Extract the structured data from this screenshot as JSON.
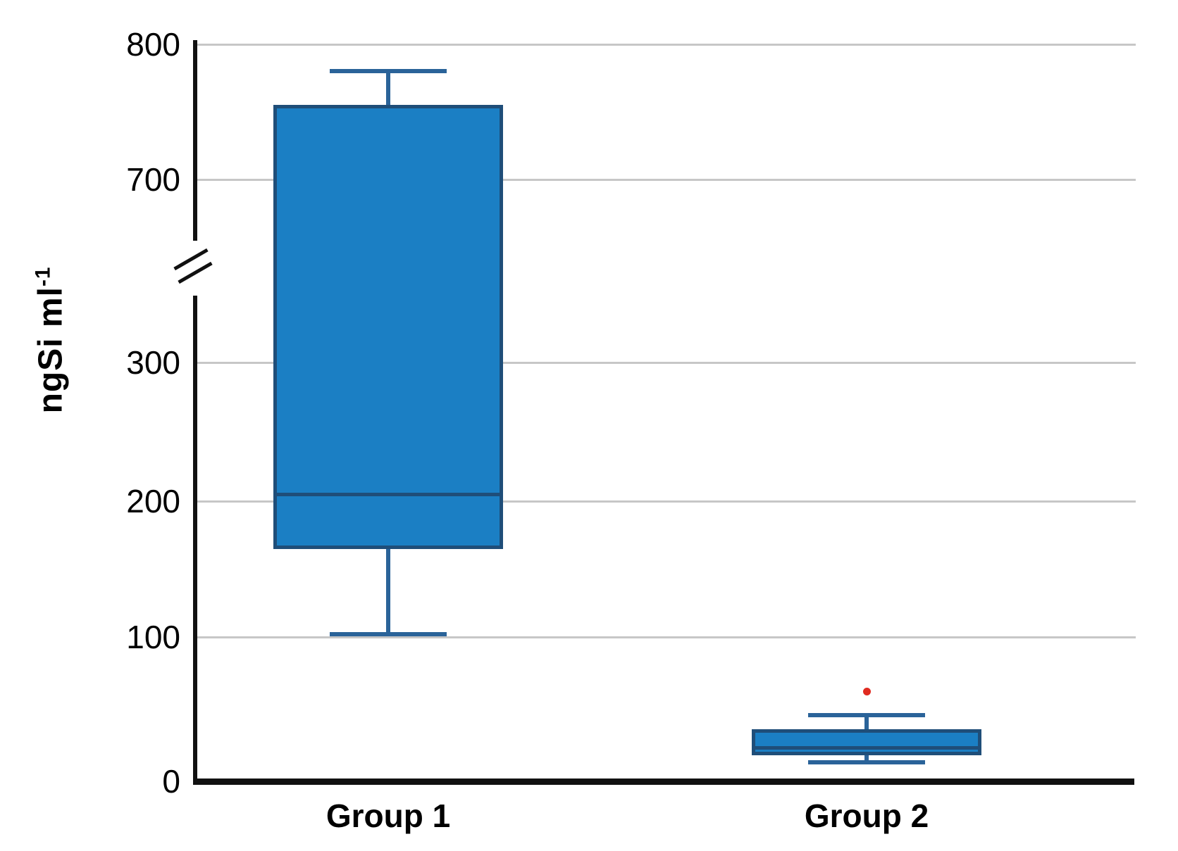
{
  "chart_data": {
    "type": "box",
    "ylabel_base": "ngSi ml",
    "ylabel_sup": "-1",
    "categories": [
      "Group 1",
      "Group 2"
    ],
    "series": [
      {
        "name": "Group 1",
        "whisker_low": 102,
        "q1": 165,
        "median": 205,
        "q3": 755,
        "whisker_high": 780,
        "outliers": []
      },
      {
        "name": "Group 2",
        "whisker_low": 13,
        "q1": 18,
        "median": 23,
        "q3": 36,
        "whisker_high": 46,
        "outliers": [
          62
        ]
      }
    ],
    "y_axis": {
      "ticks": [
        0,
        100,
        200,
        300,
        700,
        800
      ],
      "break_between": [
        300,
        700
      ],
      "ylim": [
        0,
        800
      ]
    },
    "layout": {
      "grid": true,
      "legend": false,
      "axis_break_marker": "//"
    },
    "colors": {
      "box_fill": "#1b7fc4",
      "box_border": "#1f4e79",
      "whisker": "#2a6399",
      "outlier": "#e02b20",
      "gridline": "#c7c7c7",
      "axis": "#111111",
      "text": "#000000"
    }
  }
}
